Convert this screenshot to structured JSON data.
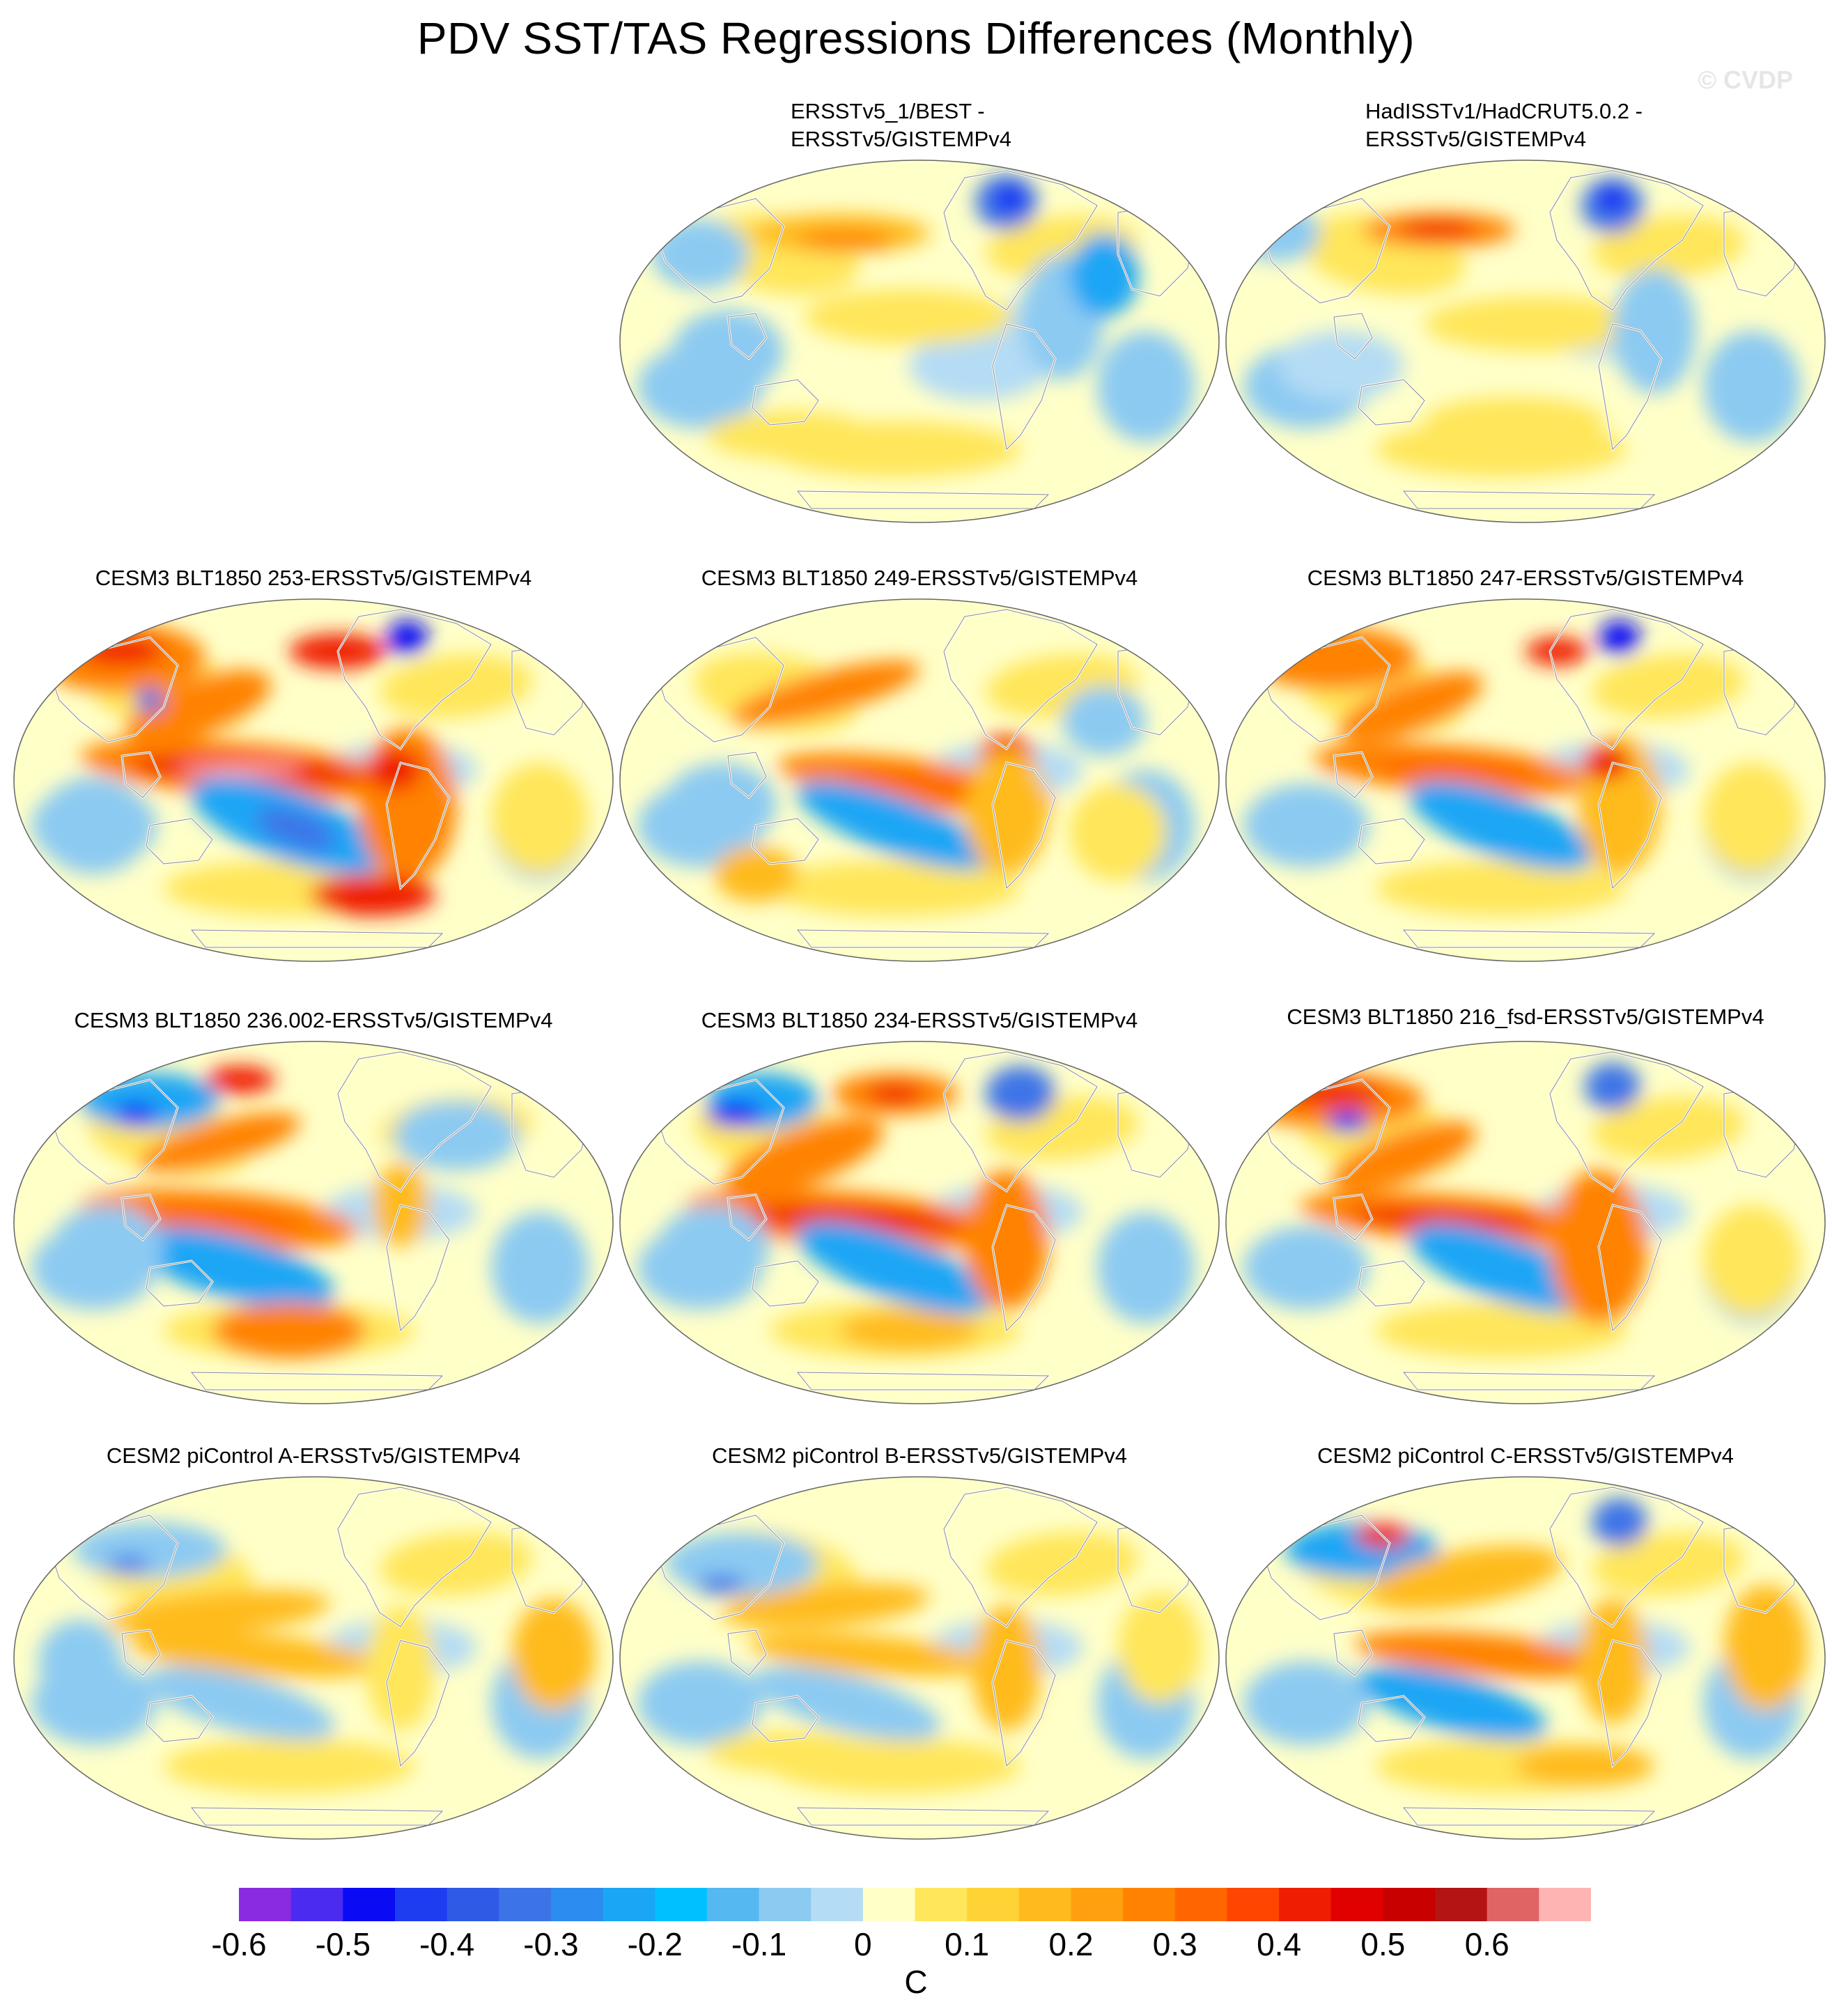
{
  "figure": {
    "title": "PDV SST/TAS Regressions Differences (Monthly)",
    "watermark": "© CVDP"
  },
  "panels": [
    {
      "id": "p1",
      "title_lines": [
        "ERSSTv5_1/BEST -",
        "ERSSTv5/GISTEMPv4"
      ],
      "pattern": "obs1"
    },
    {
      "id": "p2",
      "title_lines": [
        "HadISSTv1/HadCRUT5.0.2 -",
        "ERSSTv5/GISTEMPv4"
      ],
      "pattern": "obs2"
    },
    {
      "id": "p3",
      "title_lines": [
        "CESM3 BLT1850 253-ERSSTv5/GISTEMPv4"
      ],
      "pattern": "strong"
    },
    {
      "id": "p4",
      "title_lines": [
        "CESM3 BLT1850 249-ERSSTv5/GISTEMPv4"
      ],
      "pattern": "moderate"
    },
    {
      "id": "p5",
      "title_lines": [
        "CESM3 BLT1850 247-ERSSTv5/GISTEMPv4"
      ],
      "pattern": "moderate2"
    },
    {
      "id": "p6",
      "title_lines": [
        "CESM3 BLT1850 236.002-ERSSTv5/GISTEMPv4"
      ],
      "pattern": "mixed"
    },
    {
      "id": "p7",
      "title_lines": [
        "CESM3 BLT1850 234-ERSSTv5/GISTEMPv4"
      ],
      "pattern": "strong2"
    },
    {
      "id": "p8",
      "title_lines": [
        "CESM3 BLT1850 216_fsd-ERSSTv5/GISTEMPv4"
      ],
      "pattern": "moderate3"
    },
    {
      "id": "p9",
      "title_lines": [
        "CESM2 piControl A-ERSSTv5/GISTEMPv4"
      ],
      "pattern": "weak"
    },
    {
      "id": "p10",
      "title_lines": [
        "CESM2 piControl B-ERSSTv5/GISTEMPv4"
      ],
      "pattern": "weak2"
    },
    {
      "id": "p11",
      "title_lines": [
        "CESM2 piControl C-ERSSTv5/GISTEMPv4"
      ],
      "pattern": "weak3"
    }
  ],
  "colorbar": {
    "colors": [
      "#8a2be2",
      "#4b2bf0",
      "#0a0af5",
      "#1e3cf0",
      "#2f5ae6",
      "#3c74e8",
      "#2d8cf0",
      "#1aa6f5",
      "#00c0ff",
      "#56b8f0",
      "#8ccaf2",
      "#b4dcf5",
      "#ffffc8",
      "#ffe65a",
      "#ffd236",
      "#ffbb1e",
      "#ffa010",
      "#ff8200",
      "#ff6600",
      "#ff4500",
      "#f01e00",
      "#e00000",
      "#c80000",
      "#b41414",
      "#e06464",
      "#ffb4b4"
    ],
    "tick_labels": [
      "-0.6",
      "-0.5",
      "-0.4",
      "-0.3",
      "-0.2",
      "-0.1",
      "0",
      "0.1",
      "0.2",
      "0.3",
      "0.4",
      "0.5",
      "0.6"
    ],
    "units": "C"
  }
}
